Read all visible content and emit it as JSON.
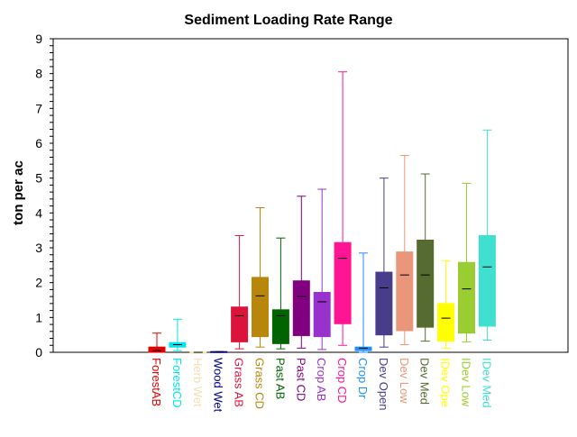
{
  "chart_data": {
    "type": "boxplot",
    "title": "Sediment Loading Rate Range",
    "xlabel": "",
    "ylabel": "ton per ac",
    "ylim": [
      0,
      9
    ],
    "yticks": [
      0,
      1,
      2,
      3,
      4,
      5,
      6,
      7,
      8,
      9
    ],
    "grid": false,
    "legend": "none",
    "categories": [
      {
        "label": "ForestAB",
        "color": "#e60000",
        "min": 0.0,
        "q1": 0.0,
        "median": 0.05,
        "q3": 0.15,
        "max": 0.55
      },
      {
        "label": "ForestCD",
        "color": "#00e5ee",
        "min": 0.05,
        "q1": 0.15,
        "median": 0.22,
        "q3": 0.28,
        "max": 0.95
      },
      {
        "label": "Herb Wet",
        "color": "#f5deb3",
        "min": 0.0,
        "q1": 0.0,
        "median": 0.0,
        "q3": 0.0,
        "max": 0.0
      },
      {
        "label": "Wood Wet",
        "color": "#00008b",
        "min": 0.0,
        "q1": 0.0,
        "median": 0.0,
        "q3": 0.02,
        "max": 0.02
      },
      {
        "label": "Grass AB",
        "color": "#dc143c",
        "min": 0.1,
        "q1": 0.3,
        "median": 1.05,
        "q3": 1.3,
        "max": 3.35
      },
      {
        "label": "Grass CD",
        "color": "#b8860b",
        "min": 0.15,
        "q1": 0.45,
        "median": 1.62,
        "q3": 2.15,
        "max": 4.15
      },
      {
        "label": "Past AB",
        "color": "#006400",
        "min": 0.1,
        "q1": 0.25,
        "median": 1.05,
        "q3": 1.22,
        "max": 3.28
      },
      {
        "label": "Past CD",
        "color": "#800080",
        "min": 0.12,
        "q1": 0.48,
        "median": 1.6,
        "q3": 2.05,
        "max": 4.48
      },
      {
        "label": "Crop AB",
        "color": "#9932cc",
        "min": 0.08,
        "q1": 0.45,
        "median": 1.45,
        "q3": 1.72,
        "max": 4.68
      },
      {
        "label": "Crop CD",
        "color": "#ff1493",
        "min": 0.2,
        "q1": 0.82,
        "median": 2.7,
        "q3": 3.15,
        "max": 8.05
      },
      {
        "label": "Crop Dr",
        "color": "#1e90ff",
        "min": 0.0,
        "q1": 0.05,
        "median": 0.12,
        "q3": 0.15,
        "max": 2.85
      },
      {
        "label": "Dev Open",
        "color": "#483d8b",
        "min": 0.15,
        "q1": 0.5,
        "median": 1.85,
        "q3": 2.3,
        "max": 5.0
      },
      {
        "label": "Dev Low",
        "color": "#e9967a",
        "min": 0.22,
        "q1": 0.62,
        "median": 2.22,
        "q3": 2.88,
        "max": 5.65
      },
      {
        "label": "Dev Med",
        "color": "#556b2f",
        "min": 0.32,
        "q1": 0.72,
        "median": 2.22,
        "q3": 3.22,
        "max": 5.12
      },
      {
        "label": "IDev Ope",
        "color": "#ffff00",
        "min": 0.12,
        "q1": 0.32,
        "median": 0.98,
        "q3": 1.4,
        "max": 2.62
      },
      {
        "label": "IDev Low",
        "color": "#9acd32",
        "min": 0.3,
        "q1": 0.55,
        "median": 1.82,
        "q3": 2.58,
        "max": 4.85
      },
      {
        "label": "IDev Med",
        "color": "#40e0d0",
        "min": 0.35,
        "q1": 0.75,
        "median": 2.45,
        "q3": 3.35,
        "max": 6.38
      }
    ]
  }
}
